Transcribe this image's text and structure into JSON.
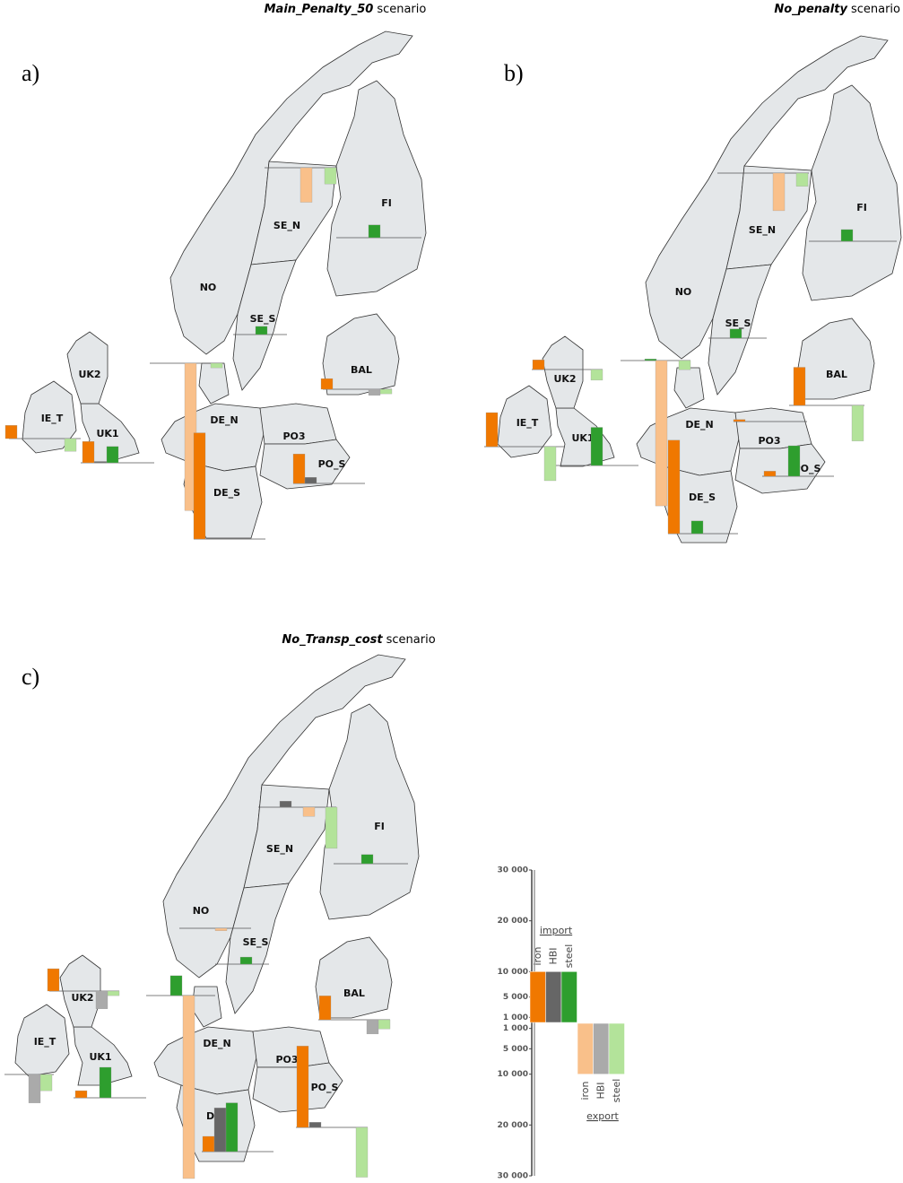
{
  "panels": [
    {
      "label": "a)",
      "title": {
        "scenario": "Main_Penalty_50",
        "suffix": "scenario"
      },
      "regions": [
        "NO",
        "SE_N",
        "SE_S",
        "FI",
        "BAL",
        "DE_N",
        "DE_S",
        "PO3",
        "PO_S",
        "UK1",
        "UK2",
        "IE_T"
      ],
      "bars": [
        {
          "flow": "export",
          "color": "#f9c08a",
          "value": 6800
        },
        {
          "flow": "export",
          "color": "#b3e39a",
          "value": 3200
        },
        {
          "flow": "import",
          "color": "#2e9e2e",
          "value": 2500
        },
        {
          "flow": "import",
          "color": "#2e9e2e",
          "value": 1600
        },
        {
          "flow": "import",
          "color": "#f07800",
          "value": 2100
        },
        {
          "flow": "export",
          "color": "#aaaaaa",
          "value": 1200
        },
        {
          "flow": "export",
          "color": "#b3e39a",
          "value": 900
        },
        {
          "flow": "export",
          "color": "#f9c08a",
          "value": 29000
        },
        {
          "flow": "export",
          "color": "#b3e39a",
          "value": 900
        },
        {
          "flow": "import",
          "color": "#f07800",
          "value": 20900
        },
        {
          "flow": "import",
          "color": "#f07800",
          "value": 5800
        },
        {
          "flow": "import",
          "color": "#666666",
          "value": 1200
        },
        {
          "flow": "import",
          "color": "#f07800",
          "value": 4200
        },
        {
          "flow": "import",
          "color": "#2e9e2e",
          "value": 3200
        },
        {
          "flow": "import",
          "color": "#f07800",
          "value": 2600
        },
        {
          "flow": "export",
          "color": "#b3e39a",
          "value": 2500
        }
      ]
    },
    {
      "label": "b)",
      "title": {
        "scenario": "No_penalty",
        "suffix": "scenario"
      },
      "regions": [
        "NO",
        "SE_N",
        "SE_S",
        "FI",
        "BAL",
        "DE_N",
        "DE_S",
        "PO3",
        "PO_S",
        "UK1",
        "UK2",
        "IE_T"
      ],
      "bars": [
        {
          "flow": "export",
          "color": "#f9c08a",
          "value": 7400
        },
        {
          "flow": "export",
          "color": "#b3e39a",
          "value": 2600
        },
        {
          "flow": "import",
          "color": "#2e9e2e",
          "value": 2300
        },
        {
          "flow": "import",
          "color": "#2e9e2e",
          "value": 1800
        },
        {
          "flow": "import",
          "color": "#f07800",
          "value": 7500
        },
        {
          "flow": "export",
          "color": "#b3e39a",
          "value": 7000
        },
        {
          "flow": "import",
          "color": "#f07800",
          "value": 1900
        },
        {
          "flow": "export",
          "color": "#b3e39a",
          "value": 2100
        },
        {
          "flow": "import",
          "color": "#2e9e2e",
          "value": 300
        },
        {
          "flow": "export",
          "color": "#f9c08a",
          "value": 28600
        },
        {
          "flow": "export",
          "color": "#b3e39a",
          "value": 1800
        },
        {
          "flow": "import",
          "color": "#f07800",
          "value": 18400
        },
        {
          "flow": "import",
          "color": "#2e9e2e",
          "value": 2500
        },
        {
          "flow": "import",
          "color": "#f07800",
          "value": 1000
        },
        {
          "flow": "import",
          "color": "#2e9e2e",
          "value": 6000
        },
        {
          "flow": "import",
          "color": "#f07800",
          "value": 400
        },
        {
          "flow": "import",
          "color": "#2e9e2e",
          "value": 7500
        },
        {
          "flow": "import",
          "color": "#f07800",
          "value": 6700
        },
        {
          "flow": "export",
          "color": "#b3e39a",
          "value": 6700
        }
      ]
    },
    {
      "label": "c)",
      "title": {
        "scenario": "No_Transp_cost",
        "suffix": "scenario"
      },
      "regions": [
        "NO",
        "SE_N",
        "SE_S",
        "FI",
        "BAL",
        "DE_N",
        "DE_S",
        "PO3",
        "PO_S",
        "UK1",
        "UK2",
        "IE_T"
      ],
      "bars": [
        {
          "flow": "import",
          "color": "#666666",
          "value": 1200
        },
        {
          "flow": "export",
          "color": "#f9c08a",
          "value": 1800
        },
        {
          "flow": "export",
          "color": "#b3e39a",
          "value": 8100
        },
        {
          "flow": "import",
          "color": "#2e9e2e",
          "value": 1800
        },
        {
          "flow": "export",
          "color": "#f9c08a",
          "value": 500
        },
        {
          "flow": "import",
          "color": "#2e9e2e",
          "value": 1400
        },
        {
          "flow": "import",
          "color": "#f07800",
          "value": 4700
        },
        {
          "flow": "export",
          "color": "#aaaaaa",
          "value": 2800
        },
        {
          "flow": "export",
          "color": "#b3e39a",
          "value": 1800
        },
        {
          "flow": "import",
          "color": "#f07800",
          "value": 4400
        },
        {
          "flow": "export",
          "color": "#aaaaaa",
          "value": 3500
        },
        {
          "flow": "export",
          "color": "#b3e39a",
          "value": 900
        },
        {
          "flow": "import",
          "color": "#2e9e2e",
          "value": 3900
        },
        {
          "flow": "export",
          "color": "#f9c08a",
          "value": 36000
        },
        {
          "flow": "import",
          "color": "#f07800",
          "value": 3000
        },
        {
          "flow": "import",
          "color": "#666666",
          "value": 8600
        },
        {
          "flow": "import",
          "color": "#2e9e2e",
          "value": 9600
        },
        {
          "flow": "import",
          "color": "#f07800",
          "value": 16000
        },
        {
          "flow": "import",
          "color": "#666666",
          "value": 1000
        },
        {
          "flow": "export",
          "color": "#b3e39a",
          "value": 9800
        },
        {
          "flow": "import",
          "color": "#f07800",
          "value": 1400
        },
        {
          "flow": "import",
          "color": "#2e9e2e",
          "value": 6000
        },
        {
          "flow": "export",
          "color": "#aaaaaa",
          "value": 5600
        },
        {
          "flow": "export",
          "color": "#b3e39a",
          "value": 3200
        }
      ]
    }
  ],
  "legend": {
    "ylim": [
      0,
      30000
    ],
    "sample_value": 10000,
    "import": {
      "label": "import",
      "items": [
        "iron",
        "HBI",
        "steel"
      ],
      "colors": [
        "#f07800",
        "#666666",
        "#2e9e2e"
      ],
      "ticks": [
        {
          "value": 30000,
          "label": "30 000"
        },
        {
          "value": 20000,
          "label": "20 000"
        },
        {
          "value": 10000,
          "label": "10 000"
        },
        {
          "value": 5000,
          "label": "5 000"
        },
        {
          "value": 1000,
          "label": "1 000"
        }
      ]
    },
    "export": {
      "label": "export",
      "items": [
        "iron",
        "HBI",
        "steel"
      ],
      "colors": [
        "#f9c08a",
        "#aaaaaa",
        "#b3e39a"
      ],
      "ticks": [
        {
          "value": 1000,
          "label": "1 000"
        },
        {
          "value": 5000,
          "label": "5 000"
        },
        {
          "value": 10000,
          "label": "10 000"
        },
        {
          "value": 20000,
          "label": "20 000"
        },
        {
          "value": 30000,
          "label": "30 000"
        }
      ]
    }
  }
}
